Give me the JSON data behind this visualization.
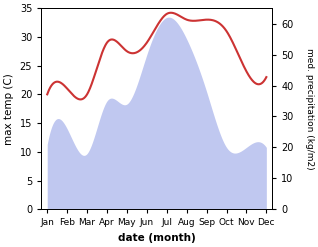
{
  "months": [
    "Jan",
    "Feb",
    "Mar",
    "Apr",
    "May",
    "Jun",
    "Jul",
    "Aug",
    "Sep",
    "Oct",
    "Nov",
    "Dec"
  ],
  "temp": [
    20,
    21,
    20,
    29,
    27.5,
    29,
    34,
    33,
    33,
    31,
    24,
    23
  ],
  "precip": [
    21,
    26,
    18,
    35,
    34,
    50,
    62,
    55,
    38,
    20,
    20,
    20
  ],
  "temp_color": "#cc3333",
  "precip_fill_color": "#c0c8f0",
  "xlabel": "date (month)",
  "ylabel_left": "max temp (C)",
  "ylabel_right": "med. precipitation (kg/m2)",
  "ylim_left": [
    0,
    35
  ],
  "ylim_right": [
    0,
    65
  ],
  "yticks_left": [
    0,
    5,
    10,
    15,
    20,
    25,
    30,
    35
  ],
  "yticks_right": [
    0,
    10,
    20,
    30,
    40,
    50,
    60
  ],
  "background_color": "#ffffff"
}
